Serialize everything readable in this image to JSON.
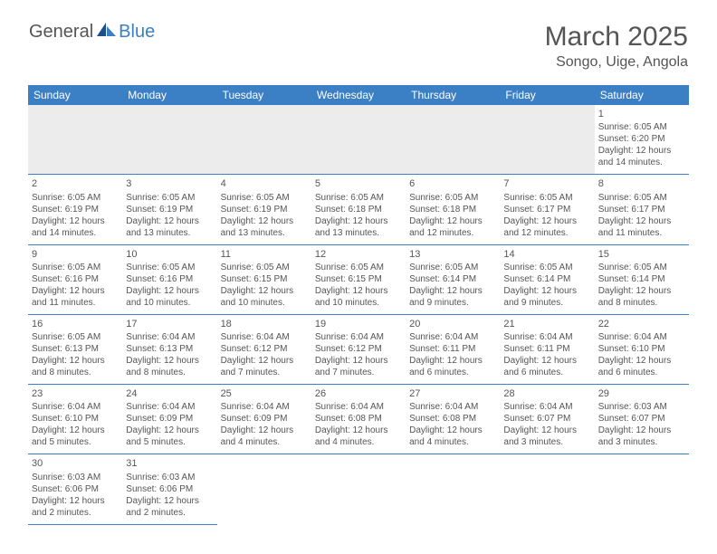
{
  "logo": {
    "general": "General",
    "blue": "Blue"
  },
  "title": "March 2025",
  "location": "Songo, Uige, Angola",
  "colors": {
    "header_bg": "#3b7fc4",
    "header_fg": "#ffffff",
    "empty_bg": "#ececec",
    "text": "#555555",
    "page_bg": "#ffffff",
    "rule": "#3b7fc4"
  },
  "weekdays": [
    "Sunday",
    "Monday",
    "Tuesday",
    "Wednesday",
    "Thursday",
    "Friday",
    "Saturday"
  ],
  "grid": [
    [
      {
        "empty": true
      },
      {
        "empty": true
      },
      {
        "empty": true
      },
      {
        "empty": true
      },
      {
        "empty": true
      },
      {
        "empty": true
      },
      {
        "day": "1",
        "sunrise": "Sunrise: 6:05 AM",
        "sunset": "Sunset: 6:20 PM",
        "daylight1": "Daylight: 12 hours",
        "daylight2": "and 14 minutes."
      }
    ],
    [
      {
        "day": "2",
        "sunrise": "Sunrise: 6:05 AM",
        "sunset": "Sunset: 6:19 PM",
        "daylight1": "Daylight: 12 hours",
        "daylight2": "and 14 minutes."
      },
      {
        "day": "3",
        "sunrise": "Sunrise: 6:05 AM",
        "sunset": "Sunset: 6:19 PM",
        "daylight1": "Daylight: 12 hours",
        "daylight2": "and 13 minutes."
      },
      {
        "day": "4",
        "sunrise": "Sunrise: 6:05 AM",
        "sunset": "Sunset: 6:19 PM",
        "daylight1": "Daylight: 12 hours",
        "daylight2": "and 13 minutes."
      },
      {
        "day": "5",
        "sunrise": "Sunrise: 6:05 AM",
        "sunset": "Sunset: 6:18 PM",
        "daylight1": "Daylight: 12 hours",
        "daylight2": "and 13 minutes."
      },
      {
        "day": "6",
        "sunrise": "Sunrise: 6:05 AM",
        "sunset": "Sunset: 6:18 PM",
        "daylight1": "Daylight: 12 hours",
        "daylight2": "and 12 minutes."
      },
      {
        "day": "7",
        "sunrise": "Sunrise: 6:05 AM",
        "sunset": "Sunset: 6:17 PM",
        "daylight1": "Daylight: 12 hours",
        "daylight2": "and 12 minutes."
      },
      {
        "day": "8",
        "sunrise": "Sunrise: 6:05 AM",
        "sunset": "Sunset: 6:17 PM",
        "daylight1": "Daylight: 12 hours",
        "daylight2": "and 11 minutes."
      }
    ],
    [
      {
        "day": "9",
        "sunrise": "Sunrise: 6:05 AM",
        "sunset": "Sunset: 6:16 PM",
        "daylight1": "Daylight: 12 hours",
        "daylight2": "and 11 minutes."
      },
      {
        "day": "10",
        "sunrise": "Sunrise: 6:05 AM",
        "sunset": "Sunset: 6:16 PM",
        "daylight1": "Daylight: 12 hours",
        "daylight2": "and 10 minutes."
      },
      {
        "day": "11",
        "sunrise": "Sunrise: 6:05 AM",
        "sunset": "Sunset: 6:15 PM",
        "daylight1": "Daylight: 12 hours",
        "daylight2": "and 10 minutes."
      },
      {
        "day": "12",
        "sunrise": "Sunrise: 6:05 AM",
        "sunset": "Sunset: 6:15 PM",
        "daylight1": "Daylight: 12 hours",
        "daylight2": "and 10 minutes."
      },
      {
        "day": "13",
        "sunrise": "Sunrise: 6:05 AM",
        "sunset": "Sunset: 6:14 PM",
        "daylight1": "Daylight: 12 hours",
        "daylight2": "and 9 minutes."
      },
      {
        "day": "14",
        "sunrise": "Sunrise: 6:05 AM",
        "sunset": "Sunset: 6:14 PM",
        "daylight1": "Daylight: 12 hours",
        "daylight2": "and 9 minutes."
      },
      {
        "day": "15",
        "sunrise": "Sunrise: 6:05 AM",
        "sunset": "Sunset: 6:14 PM",
        "daylight1": "Daylight: 12 hours",
        "daylight2": "and 8 minutes."
      }
    ],
    [
      {
        "day": "16",
        "sunrise": "Sunrise: 6:05 AM",
        "sunset": "Sunset: 6:13 PM",
        "daylight1": "Daylight: 12 hours",
        "daylight2": "and 8 minutes."
      },
      {
        "day": "17",
        "sunrise": "Sunrise: 6:04 AM",
        "sunset": "Sunset: 6:13 PM",
        "daylight1": "Daylight: 12 hours",
        "daylight2": "and 8 minutes."
      },
      {
        "day": "18",
        "sunrise": "Sunrise: 6:04 AM",
        "sunset": "Sunset: 6:12 PM",
        "daylight1": "Daylight: 12 hours",
        "daylight2": "and 7 minutes."
      },
      {
        "day": "19",
        "sunrise": "Sunrise: 6:04 AM",
        "sunset": "Sunset: 6:12 PM",
        "daylight1": "Daylight: 12 hours",
        "daylight2": "and 7 minutes."
      },
      {
        "day": "20",
        "sunrise": "Sunrise: 6:04 AM",
        "sunset": "Sunset: 6:11 PM",
        "daylight1": "Daylight: 12 hours",
        "daylight2": "and 6 minutes."
      },
      {
        "day": "21",
        "sunrise": "Sunrise: 6:04 AM",
        "sunset": "Sunset: 6:11 PM",
        "daylight1": "Daylight: 12 hours",
        "daylight2": "and 6 minutes."
      },
      {
        "day": "22",
        "sunrise": "Sunrise: 6:04 AM",
        "sunset": "Sunset: 6:10 PM",
        "daylight1": "Daylight: 12 hours",
        "daylight2": "and 6 minutes."
      }
    ],
    [
      {
        "day": "23",
        "sunrise": "Sunrise: 6:04 AM",
        "sunset": "Sunset: 6:10 PM",
        "daylight1": "Daylight: 12 hours",
        "daylight2": "and 5 minutes."
      },
      {
        "day": "24",
        "sunrise": "Sunrise: 6:04 AM",
        "sunset": "Sunset: 6:09 PM",
        "daylight1": "Daylight: 12 hours",
        "daylight2": "and 5 minutes."
      },
      {
        "day": "25",
        "sunrise": "Sunrise: 6:04 AM",
        "sunset": "Sunset: 6:09 PM",
        "daylight1": "Daylight: 12 hours",
        "daylight2": "and 4 minutes."
      },
      {
        "day": "26",
        "sunrise": "Sunrise: 6:04 AM",
        "sunset": "Sunset: 6:08 PM",
        "daylight1": "Daylight: 12 hours",
        "daylight2": "and 4 minutes."
      },
      {
        "day": "27",
        "sunrise": "Sunrise: 6:04 AM",
        "sunset": "Sunset: 6:08 PM",
        "daylight1": "Daylight: 12 hours",
        "daylight2": "and 4 minutes."
      },
      {
        "day": "28",
        "sunrise": "Sunrise: 6:04 AM",
        "sunset": "Sunset: 6:07 PM",
        "daylight1": "Daylight: 12 hours",
        "daylight2": "and 3 minutes."
      },
      {
        "day": "29",
        "sunrise": "Sunrise: 6:03 AM",
        "sunset": "Sunset: 6:07 PM",
        "daylight1": "Daylight: 12 hours",
        "daylight2": "and 3 minutes."
      }
    ],
    [
      {
        "day": "30",
        "sunrise": "Sunrise: 6:03 AM",
        "sunset": "Sunset: 6:06 PM",
        "daylight1": "Daylight: 12 hours",
        "daylight2": "and 2 minutes."
      },
      {
        "day": "31",
        "sunrise": "Sunrise: 6:03 AM",
        "sunset": "Sunset: 6:06 PM",
        "daylight1": "Daylight: 12 hours",
        "daylight2": "and 2 minutes."
      },
      {
        "empty": true,
        "plain": true
      },
      {
        "empty": true,
        "plain": true
      },
      {
        "empty": true,
        "plain": true
      },
      {
        "empty": true,
        "plain": true
      },
      {
        "empty": true,
        "plain": true
      }
    ]
  ]
}
